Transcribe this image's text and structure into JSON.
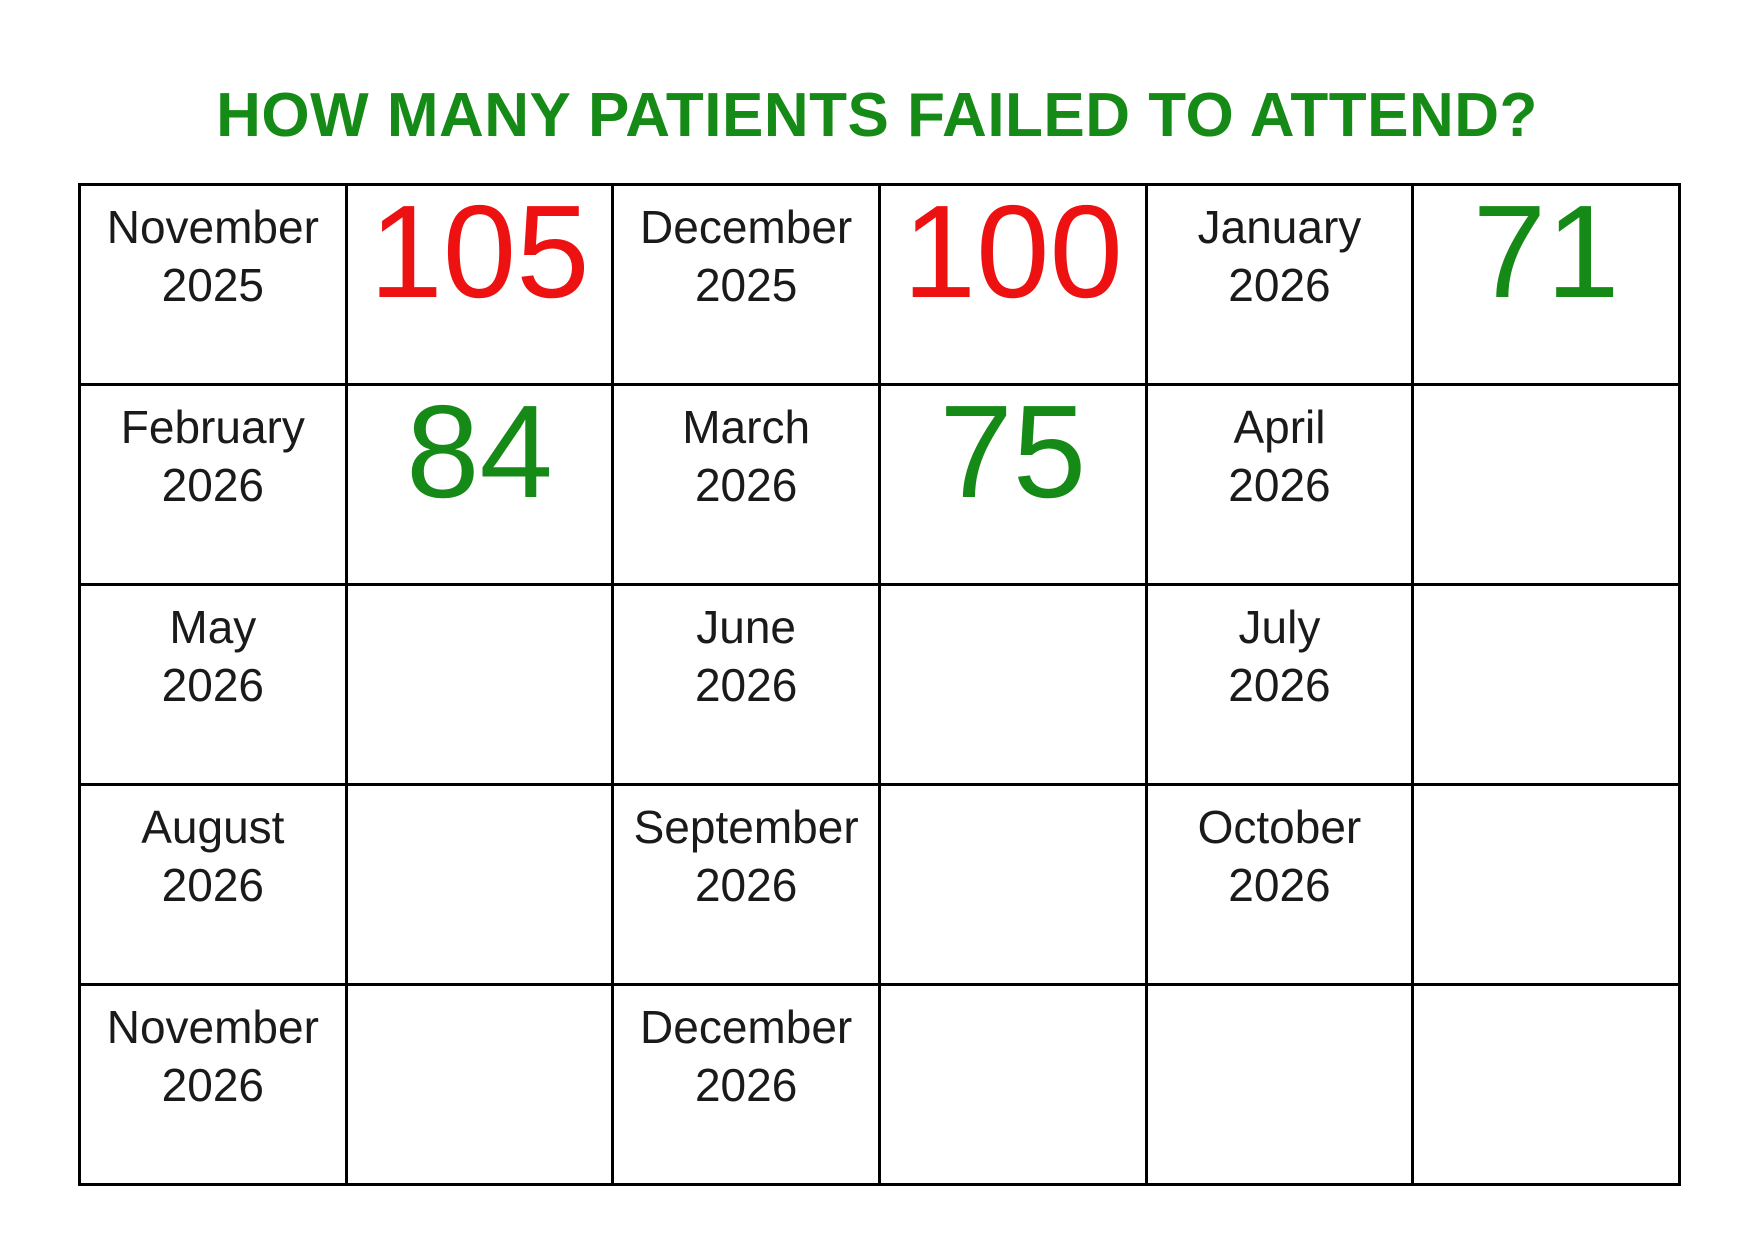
{
  "title": {
    "text": "HOW MANY PATIENTS FAILED TO ATTEND?"
  },
  "colors": {
    "title_green": "#168a16",
    "value_green": "#168a16",
    "value_red": "#ee1111",
    "month_text": "#1a1a1a",
    "grid_border": "#000000",
    "page_background": "#ffffff"
  },
  "table": {
    "columns": 6,
    "rows": [
      {
        "cells": [
          {
            "type": "month",
            "month": "November",
            "year": "2025"
          },
          {
            "type": "value",
            "value": "105",
            "color": "red"
          },
          {
            "type": "month",
            "month": "December",
            "year": "2025"
          },
          {
            "type": "value",
            "value": "100",
            "color": "red"
          },
          {
            "type": "month",
            "month": "January",
            "year": "2026"
          },
          {
            "type": "value",
            "value": "71",
            "color": "green"
          }
        ]
      },
      {
        "cells": [
          {
            "type": "month",
            "month": "February",
            "year": "2026"
          },
          {
            "type": "value",
            "value": "84",
            "color": "green"
          },
          {
            "type": "month",
            "month": "March",
            "year": "2026"
          },
          {
            "type": "value",
            "value": "75",
            "color": "green"
          },
          {
            "type": "month",
            "month": "April",
            "year": "2026"
          },
          {
            "type": "empty"
          }
        ]
      },
      {
        "cells": [
          {
            "type": "month",
            "month": "May",
            "year": "2026"
          },
          {
            "type": "empty"
          },
          {
            "type": "month",
            "month": "June",
            "year": "2026"
          },
          {
            "type": "empty"
          },
          {
            "type": "month",
            "month": "July",
            "year": "2026"
          },
          {
            "type": "empty"
          }
        ]
      },
      {
        "cells": [
          {
            "type": "month",
            "month": "August",
            "year": "2026"
          },
          {
            "type": "empty"
          },
          {
            "type": "month",
            "month": "September",
            "year": "2026"
          },
          {
            "type": "empty"
          },
          {
            "type": "month",
            "month": "October",
            "year": "2026"
          },
          {
            "type": "empty"
          }
        ]
      },
      {
        "cells": [
          {
            "type": "month",
            "month": "November",
            "year": "2026"
          },
          {
            "type": "empty"
          },
          {
            "type": "month",
            "month": "December",
            "year": "2026"
          },
          {
            "type": "empty"
          },
          {
            "type": "empty"
          },
          {
            "type": "empty"
          }
        ]
      }
    ]
  },
  "chart_data": {
    "type": "table",
    "title": "HOW MANY PATIENTS FAILED TO ATTEND?",
    "categories": [
      "November 2025",
      "December 2025",
      "January 2026",
      "February 2026",
      "March 2026",
      "April 2026",
      "May 2026",
      "June 2026",
      "July 2026",
      "August 2026",
      "September 2026",
      "October 2026",
      "November 2026",
      "December 2026"
    ],
    "values": [
      105,
      100,
      71,
      84,
      75,
      null,
      null,
      null,
      null,
      null,
      null,
      null,
      null,
      null
    ],
    "value_colors": [
      "red",
      "red",
      "green",
      "green",
      "green",
      null,
      null,
      null,
      null,
      null,
      null,
      null,
      null,
      null
    ],
    "legend_position": "none",
    "grid": "on"
  }
}
